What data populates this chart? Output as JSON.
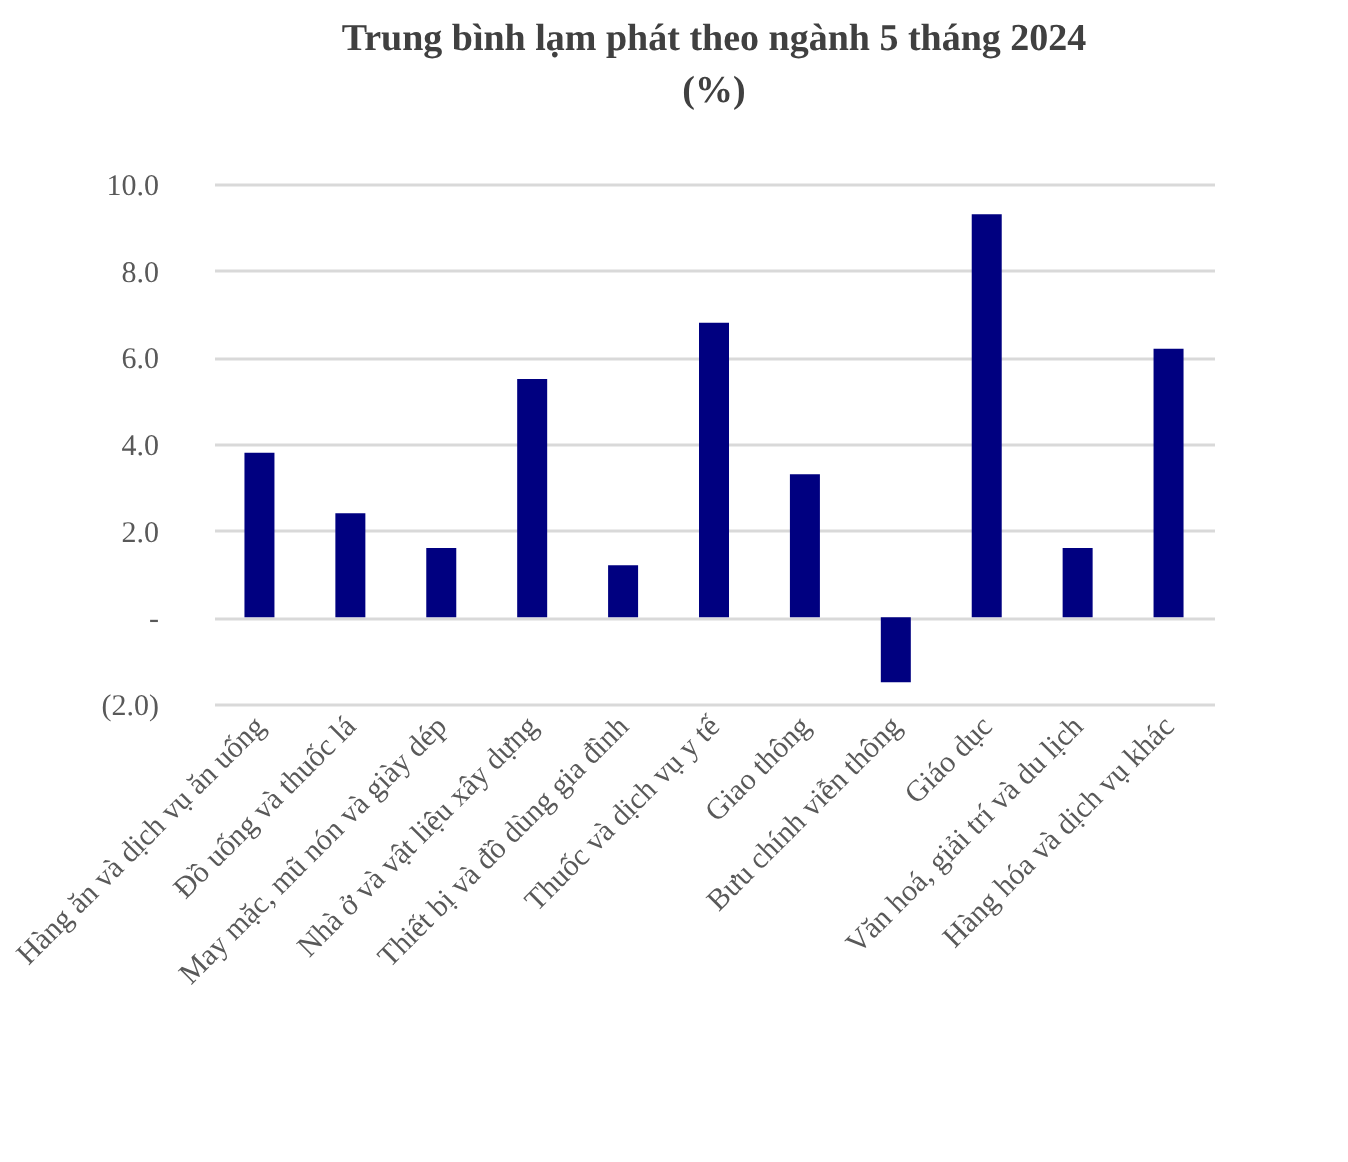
{
  "chart_data": {
    "type": "bar",
    "title": "Trung bình lạm phát theo ngành 5 tháng 2024\n(%)",
    "categories": [
      "Hàng ăn và dịch vụ ăn uống",
      "Đồ uống và thuốc lá",
      "May mặc, mũ nón và giày dép",
      "Nhà ở và vật liệu xây dựng",
      "Thiết bị và đồ dùng gia đình",
      "Thuốc và dịch vụ y tế",
      "Giao thông",
      "Bưu chính viễn thông",
      "Giáo dục",
      "Văn hoá, giải trí và du lịch",
      "Hàng hóa và dịch vụ khác"
    ],
    "values": [
      3.8,
      2.4,
      1.6,
      5.5,
      1.2,
      6.8,
      3.3,
      -1.5,
      9.3,
      1.6,
      6.2
    ],
    "color": "#000080",
    "ylim": [
      -2,
      10
    ],
    "yticks": [
      {
        "value": -2,
        "label": "(2.0)"
      },
      {
        "value": 0,
        "label": "-"
      },
      {
        "value": 2,
        "label": "2.0"
      },
      {
        "value": 4,
        "label": "4.0"
      },
      {
        "value": 6,
        "label": "6.0"
      },
      {
        "value": 8,
        "label": "8.0"
      },
      {
        "value": 10,
        "label": "10.0"
      }
    ],
    "grid": "y"
  }
}
